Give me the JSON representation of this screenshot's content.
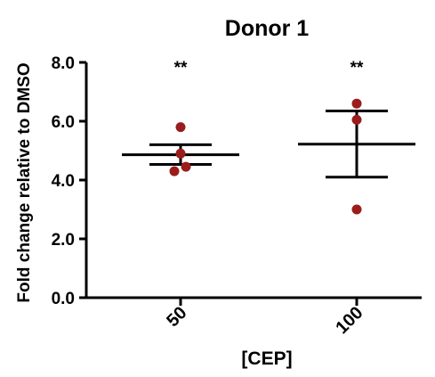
{
  "chart_data": {
    "type": "scatter",
    "title": "Donor 1",
    "xlabel": "[CEP]",
    "ylabel": "Fold change relative to DMSO",
    "categories": [
      "50",
      "100"
    ],
    "ylim": [
      0,
      8
    ],
    "yticks": [
      "0.0",
      "2.0",
      "4.0",
      "6.0",
      "8.0"
    ],
    "yticks_values": [
      0,
      2,
      4,
      6,
      8
    ],
    "grid": false,
    "legend": "none",
    "groups": [
      {
        "category": "50",
        "points": [
          5.8,
          4.9,
          4.45,
          4.3
        ],
        "mean": 4.86,
        "sem_low": 4.53,
        "sem_high": 5.2,
        "significance": "**"
      },
      {
        "category": "100",
        "points": [
          6.6,
          6.05,
          3.0
        ],
        "mean": 5.22,
        "sem_low": 4.1,
        "sem_high": 6.35,
        "significance": "**"
      }
    ],
    "colors": {
      "points": "#9b1c1c",
      "lines": "#000000",
      "text": "#000000"
    }
  }
}
